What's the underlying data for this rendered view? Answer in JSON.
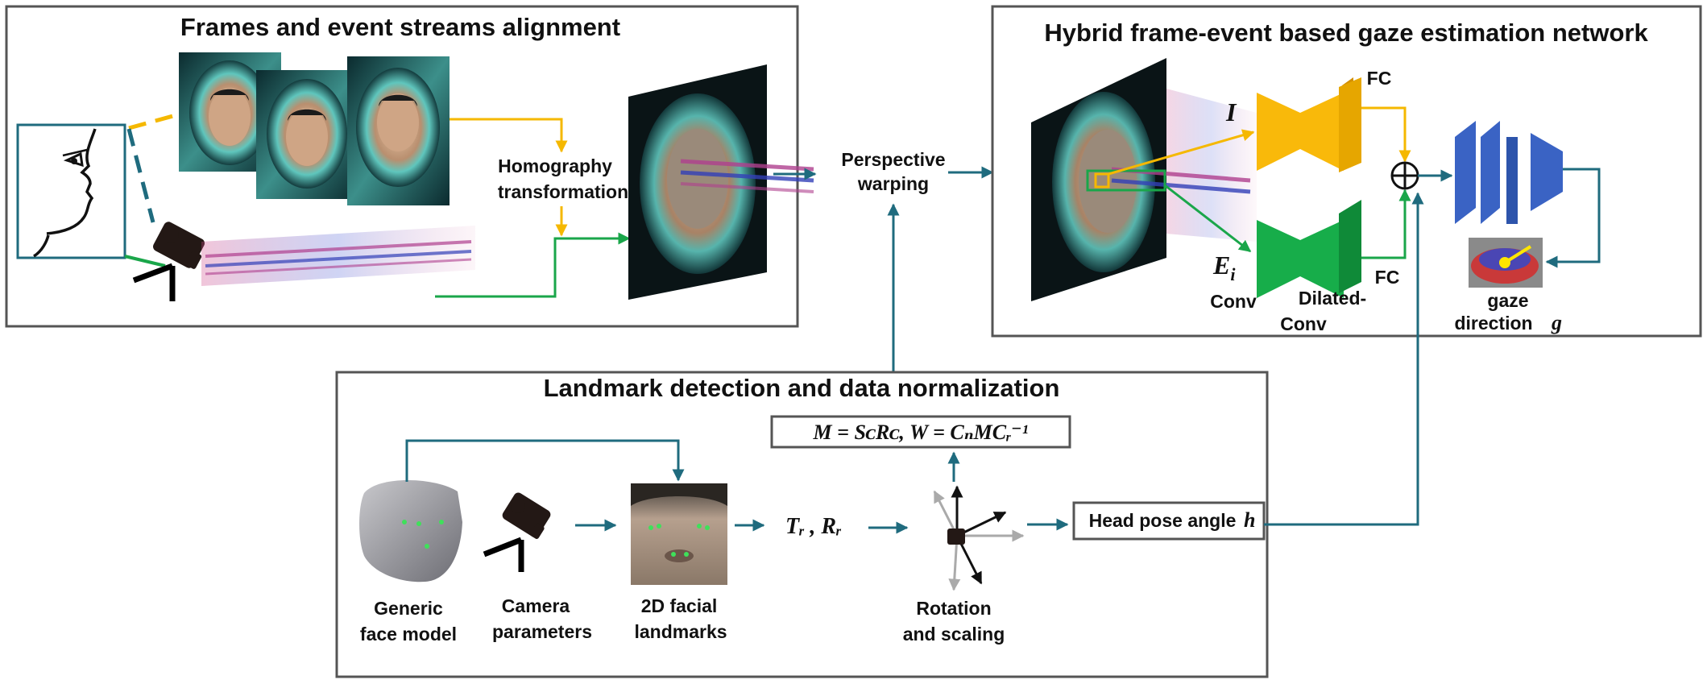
{
  "panels": {
    "alignment": {
      "title": "Frames and event streams alignment"
    },
    "network": {
      "title": "Hybrid frame-event based gaze estimation network"
    },
    "landmark": {
      "title": "Landmark detection and data normalization"
    }
  },
  "labels": {
    "homography_1": "Homography",
    "homography_2": "transformation",
    "perspective_1": "Perspective",
    "perspective_2": "warping",
    "fc_top": "FC",
    "fc_bottom": "FC",
    "conv": "Conv",
    "dilated_1": "Dilated-",
    "dilated_2": "Conv",
    "gaze_1": "gaze",
    "gaze_2": "direction",
    "gaze_sym": "g",
    "input_I": "I",
    "input_E": "E",
    "input_E_sub": "i",
    "formula": "M = SᴄRᴄ, W = CₙMCᵣ⁻¹",
    "head_pose": "Head pose angle",
    "head_pose_sym": "h",
    "tr_rr": "Tᵣ , Rᵣ",
    "generic_1": "Generic",
    "generic_2": "face model",
    "camera_1": "Camera",
    "camera_2": "parameters",
    "facial_1": "2D facial",
    "facial_2": "landmarks",
    "rotation_1": "Rotation",
    "rotation_2": "and scaling"
  },
  "colors": {
    "teal": "#1f6b7e",
    "orange": "#f5b800",
    "green": "#1aa64a",
    "blue": "#3a63c4",
    "panel_border": "#555555"
  },
  "icons": [
    "face-profile-icon",
    "event-camera-icon",
    "face-3d-model-icon",
    "camera-icon",
    "coordinate-axes-icon",
    "sum-operator-icon"
  ]
}
